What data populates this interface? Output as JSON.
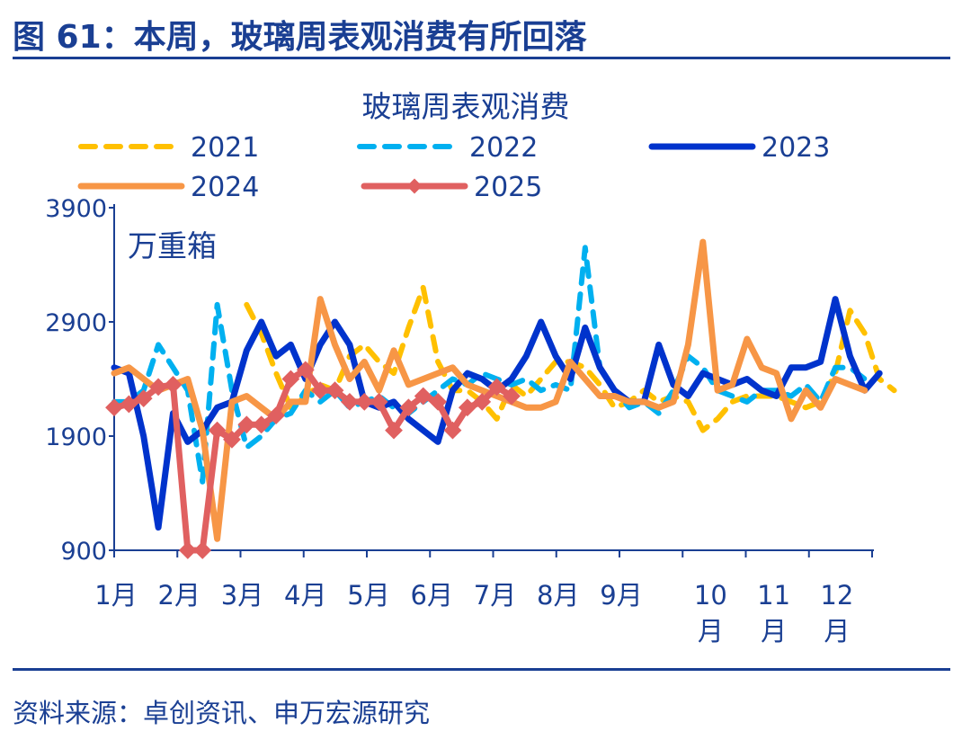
{
  "figure_title": "图 61：本周，玻璃周表观消费有所回落",
  "source": "资料来源：卓创资讯、申万宏源研究",
  "chart_data": {
    "type": "line",
    "title": "玻璃周表观消费",
    "unit_label": "万重箱",
    "ylim": [
      900,
      3900
    ],
    "yticks": [
      900,
      1900,
      2900,
      3900
    ],
    "x_unit": "week",
    "month_labels": [
      "1月",
      "2月",
      "3月",
      "4月",
      "5月",
      "6月",
      "7月",
      "8月",
      "9月",
      "10\n月",
      "11\n月",
      "12\n月"
    ],
    "grid": false,
    "legend": "top",
    "series": [
      {
        "name": "2021",
        "color": "#ffc000",
        "style": "dashed",
        "values": [
          null,
          null,
          null,
          null,
          null,
          null,
          null,
          null,
          null,
          3050,
          2800,
          2450,
          2150,
          2250,
          2350,
          2300,
          2600,
          2700,
          2550,
          2450,
          2850,
          3200,
          2550,
          2300,
          2300,
          2200,
          2050,
          2350,
          2250,
          2400,
          2550,
          2550,
          2500,
          2350,
          2150,
          2200,
          2300,
          2200,
          2250,
          2200,
          1950,
          2050,
          2200,
          2250,
          2250,
          2250,
          2200,
          2150,
          2200,
          2450,
          3000,
          2800,
          2400,
          2300
        ]
      },
      {
        "name": "2022",
        "color": "#00b0f0",
        "style": "dashed",
        "values": [
          2200,
          2200,
          2300,
          2700,
          2500,
          2300,
          1500,
          3050,
          2300,
          1800,
          1900,
          2050,
          2100,
          2300,
          2200,
          2300,
          2150,
          2200,
          2250,
          2150,
          2100,
          2200,
          2300,
          2400,
          2350,
          2450,
          2400,
          2350,
          2400,
          2300,
          2350,
          2300,
          3550,
          2500,
          2300,
          2150,
          2200,
          2100,
          2300,
          2600,
          2500,
          2300,
          2250,
          2200,
          2300,
          2300,
          2250,
          2350,
          2200,
          2500,
          2500,
          2400
        ]
      },
      {
        "name": "2023",
        "color": "#0033cc",
        "style": "solid",
        "values": [
          2500,
          2450,
          1900,
          1100,
          2100,
          1850,
          1950,
          2150,
          2200,
          2650,
          2900,
          2600,
          2700,
          2400,
          2700,
          2900,
          2700,
          2200,
          2150,
          2200,
          2050,
          1950,
          1850,
          2300,
          2450,
          2400,
          2300,
          2400,
          2600,
          2900,
          2600,
          2400,
          2850,
          2500,
          2300,
          2200,
          2200,
          2700,
          2350,
          2250,
          2450,
          2400,
          2350,
          2400,
          2300,
          2250,
          2500,
          2500,
          2550,
          3100,
          2600,
          2300,
          2450
        ]
      },
      {
        "name": "2024",
        "color": "#f79646",
        "style": "solid",
        "values": [
          2450,
          2500,
          2400,
          2300,
          2350,
          2400,
          1950,
          1000,
          2200,
          2250,
          2150,
          2050,
          2200,
          2200,
          3100,
          2700,
          2400,
          2550,
          2300,
          2650,
          2350,
          2400,
          2450,
          2500,
          2350,
          2300,
          2250,
          2200,
          2150,
          2150,
          2200,
          2550,
          2400,
          2250,
          2250,
          2200,
          2200,
          2150,
          2200,
          2700,
          3600,
          2300,
          2350,
          2750,
          2500,
          2450,
          2050,
          2300,
          2150,
          2400,
          2350,
          2300
        ]
      },
      {
        "name": "2025",
        "color": "#e06060",
        "style": "solid-diamond",
        "values": [
          2150,
          2180,
          2230,
          2330,
          2350,
          900,
          900,
          1950,
          1870,
          2000,
          2000,
          2080,
          2400,
          2480,
          2300,
          2300,
          2200,
          2200,
          2200,
          1950,
          2150,
          2250,
          2200,
          1950,
          2150,
          2200,
          2330,
          2250
        ]
      }
    ]
  }
}
